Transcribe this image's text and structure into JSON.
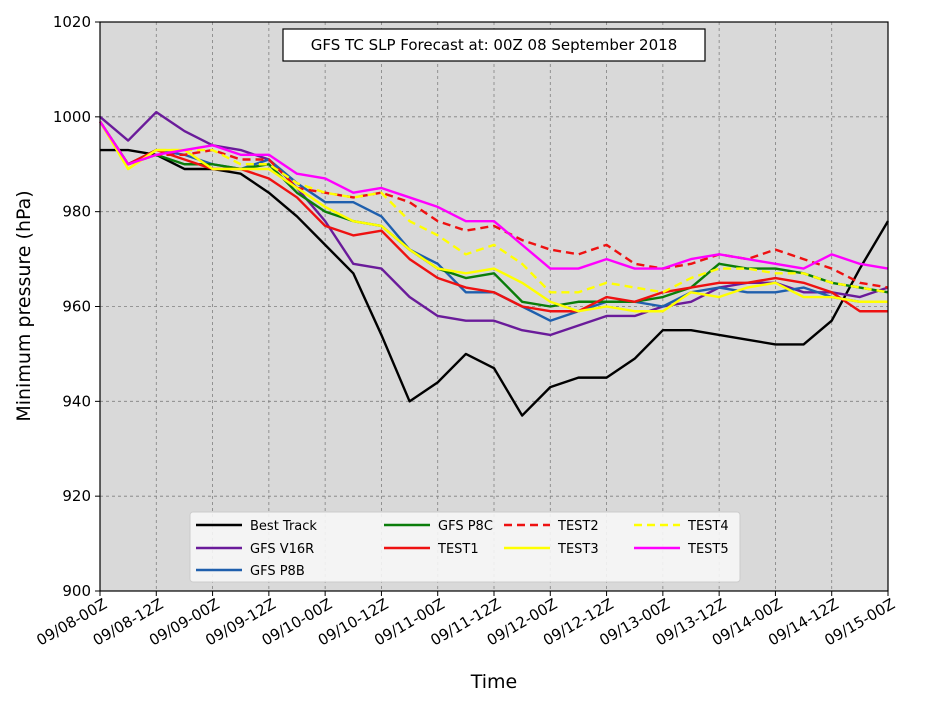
{
  "chart_data": {
    "type": "line",
    "title": "GFS TC SLP Forecast at: 00Z 08 September 2018",
    "xlabel": "Time",
    "ylabel": "Minimum pressure (hPa)",
    "ylim": [
      900,
      1020
    ],
    "yticks": [
      900,
      920,
      940,
      960,
      980,
      1000,
      1020
    ],
    "xticks": [
      "09/08-00Z",
      "09/08-12Z",
      "09/09-00Z",
      "09/09-12Z",
      "09/10-00Z",
      "09/10-12Z",
      "09/11-00Z",
      "09/11-12Z",
      "09/12-00Z",
      "09/12-12Z",
      "09/13-00Z",
      "09/13-12Z",
      "09/14-00Z",
      "09/14-12Z",
      "09/15-00Z"
    ],
    "x_hours": [
      0,
      6,
      12,
      18,
      24,
      30,
      36,
      42,
      48,
      54,
      60,
      66,
      72,
      78,
      84,
      90,
      96,
      102,
      108,
      114,
      120,
      126,
      132,
      138,
      144,
      150,
      156,
      162,
      168
    ],
    "grid": true,
    "legend_position": "bottom-center",
    "background_color": "#d9d9d9",
    "series": [
      {
        "name": "Best Track",
        "color": "#000000",
        "dash": "solid",
        "values": [
          993,
          993,
          992,
          989,
          989,
          988,
          984,
          979,
          973,
          967,
          954,
          940,
          944,
          950,
          947,
          937,
          943,
          945,
          945,
          949,
          955,
          955,
          954,
          953,
          952,
          952,
          957,
          968,
          978
        ]
      },
      {
        "name": "GFS V16R",
        "color": "#6a1b9a",
        "dash": "solid",
        "values": [
          1000,
          995,
          1001,
          997,
          994,
          993,
          991,
          985,
          978,
          969,
          968,
          962,
          958,
          957,
          957,
          955,
          954,
          956,
          958,
          958,
          960,
          961,
          964,
          965,
          965,
          963,
          963,
          962,
          964
        ]
      },
      {
        "name": "GFS P8B",
        "color": "#1f5fad",
        "dash": "solid",
        "values": [
          999,
          990,
          993,
          992,
          990,
          989,
          991,
          986,
          982,
          982,
          979,
          972,
          969,
          963,
          963,
          960,
          957,
          959,
          961,
          961,
          960,
          963,
          964,
          963,
          963,
          964,
          962,
          961,
          961
        ]
      },
      {
        "name": "GFS P8C",
        "color": "#0a7d0a",
        "dash": "solid",
        "values": [
          999,
          990,
          992,
          990,
          990,
          989,
          990,
          984,
          980,
          978,
          977,
          972,
          968,
          966,
          967,
          961,
          960,
          961,
          961,
          961,
          962,
          964,
          969,
          968,
          968,
          967,
          965,
          964,
          963
        ]
      },
      {
        "name": "TEST1",
        "color": "#ee1111",
        "dash": "solid",
        "values": [
          999,
          990,
          993,
          991,
          989,
          989,
          987,
          983,
          977,
          975,
          976,
          970,
          966,
          964,
          963,
          960,
          959,
          959,
          962,
          961,
          963,
          964,
          965,
          965,
          966,
          965,
          963,
          959,
          959
        ]
      },
      {
        "name": "TEST2",
        "color": "#ee1111",
        "dash": "dashed",
        "values": [
          999,
          990,
          992,
          992,
          993,
          991,
          991,
          985,
          984,
          983,
          984,
          982,
          978,
          976,
          977,
          974,
          972,
          971,
          973,
          969,
          968,
          969,
          971,
          970,
          972,
          970,
          968,
          965,
          964
        ]
      },
      {
        "name": "TEST3",
        "color": "#ffff00",
        "dash": "solid",
        "values": [
          999,
          989,
          993,
          993,
          989,
          989,
          989,
          985,
          981,
          978,
          977,
          972,
          968,
          967,
          968,
          965,
          961,
          959,
          960,
          959,
          959,
          963,
          962,
          964,
          965,
          962,
          962,
          961,
          961
        ]
      },
      {
        "name": "TEST4",
        "color": "#ffff00",
        "dash": "dashed",
        "values": [
          999,
          989,
          993,
          993,
          993,
          990,
          990,
          986,
          984,
          983,
          984,
          978,
          975,
          971,
          973,
          969,
          963,
          963,
          965,
          964,
          963,
          966,
          968,
          968,
          967,
          967,
          965,
          964,
          963
        ]
      },
      {
        "name": "TEST5",
        "color": "#ff00ff",
        "dash": "solid",
        "values": [
          999,
          990,
          992,
          993,
          994,
          992,
          992,
          988,
          987,
          984,
          985,
          983,
          981,
          978,
          978,
          973,
          968,
          968,
          970,
          968,
          968,
          970,
          971,
          970,
          969,
          968,
          971,
          969,
          968
        ]
      }
    ]
  }
}
